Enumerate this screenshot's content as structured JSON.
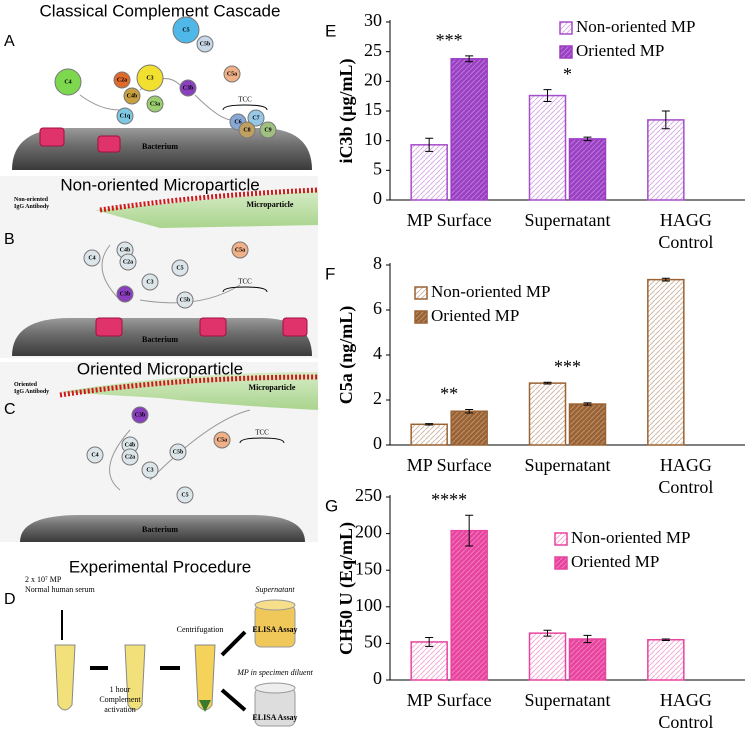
{
  "figure": {
    "panels": [
      {
        "letter": "A",
        "title": "Classical Complement Cascade",
        "surface": "Bacterium",
        "complex": "TCC",
        "molecules": [
          "C1q",
          "C4",
          "C2a",
          "C4b",
          "C3",
          "C3a",
          "C3b",
          "C5",
          "C5a",
          "C5b",
          "C6",
          "C7",
          "C8",
          "C9"
        ]
      },
      {
        "letter": "B",
        "title": "Non-oriented Microparticle",
        "antibody": "Non-oriented\nIgG Antibody",
        "particle": "Microparticle",
        "surface": "Bacterium",
        "complex": "TCC",
        "molecules": [
          "C4",
          "C4b",
          "C2a",
          "C3",
          "C3b",
          "C5",
          "C5a",
          "C5b"
        ]
      },
      {
        "letter": "C",
        "title": "Oriented Microparticle",
        "antibody": "Oriented\nIgG Antibody",
        "particle": "Microparticle",
        "surface": "Bacterium",
        "complex": "TCC",
        "molecules": [
          "C4",
          "C4b",
          "C2a",
          "C3",
          "C3b",
          "C5",
          "C5a",
          "C5b"
        ]
      },
      {
        "letter": "D",
        "title": "Experimental Procedure",
        "steps": [
          "2 x 10⁷ MP\nNormal human serum",
          "1 hour\nComplement\nactivation",
          "Centrifugation",
          "Supernatant",
          "ELISA Assay",
          "MP in specimen diluent",
          "ELISA Assay"
        ]
      }
    ]
  },
  "chart_data": [
    {
      "type": "bar",
      "label": "E",
      "y_label": "iC3b (µg/mL)",
      "legend": "upper right",
      "categories": [
        "MP Surface",
        "Supernatant",
        "HAGG\nControl"
      ],
      "annotations": [
        "***",
        "*",
        null
      ],
      "series": [
        {
          "name": "Non-oriented MP",
          "color": "#a64dc9",
          "style": "hatched",
          "values": [
            9.3,
            17.6,
            13.5
          ],
          "errors": [
            1.1,
            1.0,
            1.5
          ]
        },
        {
          "name": "Oriented MP",
          "color": "#9b3fc4",
          "style": "solid",
          "values": [
            23.8,
            10.3,
            null
          ],
          "errors": [
            0.5,
            0.3,
            null
          ]
        }
      ],
      "ylim": [
        0,
        30
      ],
      "yticks": [
        0,
        5,
        10,
        15,
        20,
        25,
        30
      ]
    },
    {
      "type": "bar",
      "label": "F",
      "y_label": "C5a (ng/mL)",
      "legend": "upper left",
      "categories": [
        "MP Surface",
        "Supernatant",
        "HAGG\nControl"
      ],
      "annotations": [
        "**",
        "***",
        null
      ],
      "series": [
        {
          "name": "Non-oriented MP",
          "color": "#9a6233",
          "style": "hatched",
          "values": [
            0.92,
            2.75,
            7.35
          ],
          "errors": [
            0.03,
            0.04,
            0.06
          ]
        },
        {
          "name": "Oriented MP",
          "color": "#9a6233",
          "style": "solid",
          "values": [
            1.5,
            1.82,
            null
          ],
          "errors": [
            0.08,
            0.05,
            null
          ]
        }
      ],
      "ylim": [
        0,
        8
      ],
      "yticks": [
        0,
        2,
        4,
        6,
        8
      ]
    },
    {
      "type": "bar",
      "label": "G",
      "y_label": "CH50 U (Eq/mL)",
      "legend": "center right",
      "categories": [
        "MP Surface",
        "Supernatant",
        "HAGG\nControl"
      ],
      "annotations": [
        "****",
        null,
        null
      ],
      "series": [
        {
          "name": "Non-oriented MP",
          "color": "#e8449f",
          "style": "hatched",
          "values": [
            52,
            64,
            55
          ],
          "errors": [
            6,
            4,
            1
          ]
        },
        {
          "name": "Oriented MP",
          "color": "#e8449f",
          "style": "solid",
          "values": [
            204,
            56,
            null
          ],
          "errors": [
            21,
            5,
            null
          ]
        }
      ],
      "ylim": [
        0,
        250
      ],
      "yticks": [
        0,
        50,
        100,
        150,
        200,
        250
      ]
    }
  ]
}
